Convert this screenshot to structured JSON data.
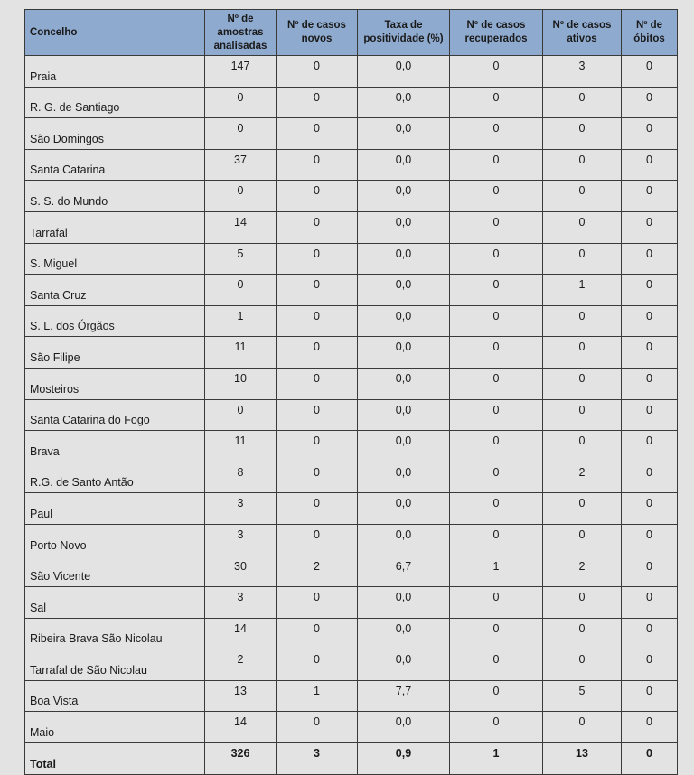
{
  "table": {
    "headers": [
      "Concelho",
      "Nº de amostras analisadas",
      "Nº de casos novos",
      "Taxa de positividade (%)",
      "Nº de casos recuperados",
      "Nº de casos ativos",
      "Nº de óbitos"
    ],
    "rows": [
      [
        "Praia",
        "147",
        "0",
        "0,0",
        "0",
        "3",
        "0"
      ],
      [
        "R. G. de Santiago",
        "0",
        "0",
        "0,0",
        "0",
        "0",
        "0"
      ],
      [
        "São Domingos",
        "0",
        "0",
        "0,0",
        "0",
        "0",
        "0"
      ],
      [
        "Santa Catarina",
        "37",
        "0",
        "0,0",
        "0",
        "0",
        "0"
      ],
      [
        "S. S. do Mundo",
        "0",
        "0",
        "0,0",
        "0",
        "0",
        "0"
      ],
      [
        "Tarrafal",
        "14",
        "0",
        "0,0",
        "0",
        "0",
        "0"
      ],
      [
        "S. Miguel",
        "5",
        "0",
        "0,0",
        "0",
        "0",
        "0"
      ],
      [
        "Santa Cruz",
        "0",
        "0",
        "0,0",
        "0",
        "1",
        "0"
      ],
      [
        "S. L. dos Órgãos",
        "1",
        "0",
        "0,0",
        "0",
        "0",
        "0"
      ],
      [
        "São Filipe",
        "11",
        "0",
        "0,0",
        "0",
        "0",
        "0"
      ],
      [
        "Mosteiros",
        "10",
        "0",
        "0,0",
        "0",
        "0",
        "0"
      ],
      [
        "Santa Catarina do Fogo",
        "0",
        "0",
        "0,0",
        "0",
        "0",
        "0"
      ],
      [
        "Brava",
        "11",
        "0",
        "0,0",
        "0",
        "0",
        "0"
      ],
      [
        "R.G. de Santo Antão",
        "8",
        "0",
        "0,0",
        "0",
        "2",
        "0"
      ],
      [
        "Paul",
        "3",
        "0",
        "0,0",
        "0",
        "0",
        "0"
      ],
      [
        "Porto Novo",
        "3",
        "0",
        "0,0",
        "0",
        "0",
        "0"
      ],
      [
        "São Vicente",
        "30",
        "2",
        "6,7",
        "1",
        "2",
        "0"
      ],
      [
        "Sal",
        "3",
        "0",
        "0,0",
        "0",
        "0",
        "0"
      ],
      [
        "Ribeira Brava São Nicolau",
        "14",
        "0",
        "0,0",
        "0",
        "0",
        "0"
      ],
      [
        "Tarrafal de São Nicolau",
        "2",
        "0",
        "0,0",
        "0",
        "0",
        "0"
      ],
      [
        "Boa Vista",
        "13",
        "1",
        "7,7",
        "0",
        "5",
        "0"
      ],
      [
        "Maio",
        "14",
        "0",
        "0,0",
        "0",
        "0",
        "0"
      ]
    ],
    "total": [
      "Total",
      "326",
      "3",
      "0,9",
      "1",
      "13",
      "0"
    ]
  },
  "colors": {
    "header_bg": "#8eaacf",
    "page_bg": "#e3e3e3"
  }
}
